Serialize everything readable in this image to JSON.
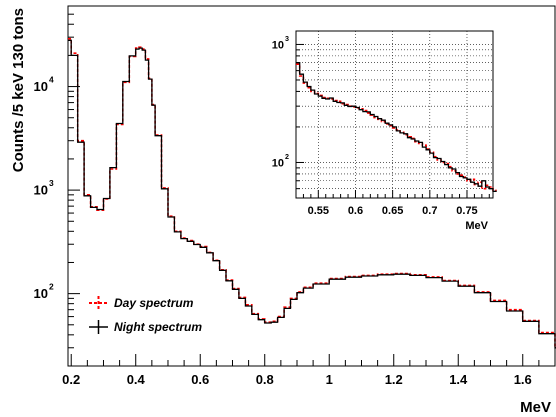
{
  "chart_data": [
    {
      "type": "line",
      "title": "",
      "xlabel": "MeV",
      "ylabel": "Counts /5 keV 130 tons",
      "xlim": [
        0.19,
        1.7
      ],
      "ylim": [
        20,
        60000
      ],
      "yscale": "log",
      "grid": false,
      "legend_position": "bottom-left",
      "x_ticks": [
        "0.2",
        "0.4",
        "0.6",
        "0.8",
        "1",
        "1.2",
        "1.4",
        "1.6"
      ],
      "x_tick_values": [
        0.2,
        0.4,
        0.6,
        0.8,
        1.0,
        1.2,
        1.4,
        1.6
      ],
      "y_ticks": [
        {
          "base": "10",
          "exp": "2",
          "value": 100
        },
        {
          "base": "10",
          "exp": "3",
          "value": 1000
        },
        {
          "base": "10",
          "exp": "4",
          "value": 10000
        }
      ],
      "series": [
        {
          "name": "Day spectrum",
          "style": "dashed",
          "color": "#ff0000",
          "x": [
            0.19,
            0.2,
            0.22,
            0.24,
            0.26,
            0.28,
            0.3,
            0.32,
            0.34,
            0.36,
            0.38,
            0.4,
            0.41,
            0.42,
            0.43,
            0.44,
            0.45,
            0.46,
            0.48,
            0.5,
            0.52,
            0.54,
            0.56,
            0.58,
            0.6,
            0.62,
            0.64,
            0.66,
            0.68,
            0.7,
            0.72,
            0.74,
            0.76,
            0.78,
            0.8,
            0.82,
            0.84,
            0.86,
            0.88,
            0.9,
            0.92,
            0.95,
            1.0,
            1.05,
            1.1,
            1.15,
            1.2,
            1.25,
            1.3,
            1.35,
            1.4,
            1.45,
            1.5,
            1.55,
            1.6,
            1.65,
            1.7
          ],
          "y": [
            29000,
            21000,
            3000,
            900,
            690,
            640,
            820,
            1600,
            4300,
            11000,
            19500,
            23500,
            24000,
            23000,
            18500,
            12000,
            6700,
            3400,
            1050,
            560,
            400,
            345,
            325,
            300,
            285,
            250,
            210,
            170,
            135,
            112,
            92,
            78,
            64,
            57,
            53,
            54,
            60,
            74,
            90,
            104,
            115,
            126,
            140,
            146,
            150,
            154,
            156,
            152,
            145,
            134,
            120,
            104,
            86,
            70,
            55,
            42,
            30
          ]
        },
        {
          "name": "Night spectrum",
          "style": "solid",
          "color": "#000000",
          "x": [
            0.19,
            0.2,
            0.22,
            0.24,
            0.26,
            0.28,
            0.3,
            0.32,
            0.34,
            0.36,
            0.38,
            0.4,
            0.41,
            0.42,
            0.43,
            0.44,
            0.45,
            0.46,
            0.48,
            0.5,
            0.52,
            0.54,
            0.56,
            0.58,
            0.6,
            0.62,
            0.64,
            0.66,
            0.68,
            0.7,
            0.72,
            0.74,
            0.76,
            0.78,
            0.8,
            0.82,
            0.84,
            0.86,
            0.88,
            0.9,
            0.92,
            0.95,
            1.0,
            1.05,
            1.1,
            1.15,
            1.2,
            1.25,
            1.3,
            1.35,
            1.4,
            1.45,
            1.5,
            1.55,
            1.6,
            1.65,
            1.7
          ],
          "y": [
            28000,
            20000,
            2900,
            880,
            680,
            650,
            830,
            1650,
            4400,
            11200,
            19800,
            23000,
            23500,
            22500,
            18000,
            11800,
            6600,
            3350,
            1030,
            550,
            395,
            340,
            320,
            298,
            280,
            248,
            208,
            168,
            133,
            110,
            90,
            76,
            63,
            56,
            52,
            53,
            59,
            72,
            88,
            102,
            113,
            124,
            138,
            144,
            148,
            152,
            154,
            150,
            143,
            132,
            118,
            102,
            84,
            68,
            54,
            41,
            30
          ]
        }
      ]
    },
    {
      "type": "line",
      "title": "",
      "xlabel": "MeV",
      "ylabel": "",
      "xlim": [
        0.52,
        0.785
      ],
      "ylim": [
        50,
        1300
      ],
      "yscale": "log",
      "grid": true,
      "x_ticks": [
        "0.55",
        "0.6",
        "0.65",
        "0.7",
        "0.75"
      ],
      "x_tick_values": [
        0.55,
        0.6,
        0.65,
        0.7,
        0.75
      ],
      "y_ticks": [
        {
          "base": "10",
          "exp": "2",
          "value": 100
        },
        {
          "base": "10",
          "exp": "3",
          "value": 1000
        }
      ],
      "series": [
        {
          "name": "Day spectrum",
          "style": "dashed",
          "color": "#ff0000",
          "x": [
            0.52,
            0.525,
            0.53,
            0.535,
            0.54,
            0.545,
            0.55,
            0.555,
            0.56,
            0.565,
            0.57,
            0.575,
            0.58,
            0.585,
            0.59,
            0.595,
            0.6,
            0.605,
            0.61,
            0.615,
            0.62,
            0.625,
            0.63,
            0.635,
            0.64,
            0.645,
            0.65,
            0.655,
            0.66,
            0.665,
            0.67,
            0.675,
            0.68,
            0.685,
            0.69,
            0.695,
            0.7,
            0.705,
            0.71,
            0.715,
            0.72,
            0.725,
            0.73,
            0.735,
            0.74,
            0.745,
            0.75,
            0.755,
            0.76,
            0.765,
            0.77,
            0.775,
            0.78,
            0.785
          ],
          "y": [
            680,
            540,
            470,
            430,
            400,
            385,
            370,
            355,
            350,
            345,
            335,
            330,
            315,
            310,
            300,
            295,
            290,
            285,
            275,
            262,
            252,
            240,
            232,
            222,
            212,
            205,
            196,
            188,
            180,
            172,
            165,
            160,
            150,
            145,
            140,
            130,
            122,
            112,
            105,
            100,
            98,
            92,
            85,
            80,
            78,
            75,
            70,
            72,
            65,
            68,
            60,
            64,
            62,
            58
          ]
        },
        {
          "name": "Night spectrum",
          "style": "solid",
          "color": "#000000",
          "x": [
            0.52,
            0.525,
            0.53,
            0.535,
            0.54,
            0.545,
            0.55,
            0.555,
            0.56,
            0.565,
            0.57,
            0.575,
            0.58,
            0.585,
            0.59,
            0.595,
            0.6,
            0.605,
            0.61,
            0.615,
            0.62,
            0.625,
            0.63,
            0.635,
            0.64,
            0.645,
            0.65,
            0.655,
            0.66,
            0.665,
            0.67,
            0.675,
            0.68,
            0.685,
            0.69,
            0.695,
            0.7,
            0.705,
            0.71,
            0.715,
            0.72,
            0.725,
            0.73,
            0.735,
            0.74,
            0.745,
            0.75,
            0.755,
            0.76,
            0.765,
            0.77,
            0.775,
            0.78,
            0.785
          ],
          "y": [
            700,
            560,
            480,
            440,
            410,
            380,
            365,
            350,
            345,
            352,
            330,
            322,
            320,
            305,
            298,
            300,
            292,
            280,
            270,
            268,
            255,
            245,
            235,
            228,
            215,
            208,
            200,
            185,
            178,
            175,
            162,
            158,
            152,
            148,
            135,
            128,
            120,
            110,
            108,
            102,
            96,
            90,
            88,
            82,
            76,
            74,
            72,
            68,
            66,
            63,
            70,
            62,
            60,
            57
          ]
        }
      ]
    }
  ]
}
